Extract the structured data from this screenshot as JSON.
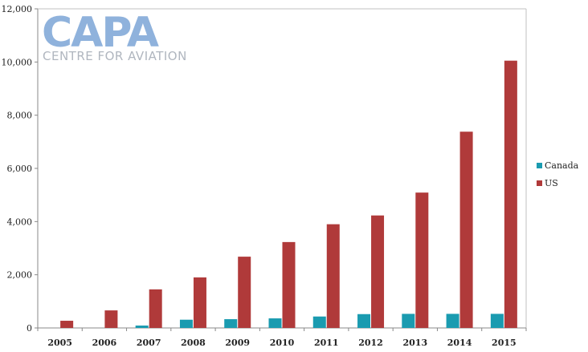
{
  "logo": {
    "main": "CAPA",
    "sub": "CENTRE FOR AVIATION"
  },
  "chart_data": {
    "type": "bar",
    "title": "",
    "xlabel": "",
    "ylabel": "",
    "categories": [
      "2005",
      "2006",
      "2007",
      "2008",
      "2009",
      "2010",
      "2011",
      "2012",
      "2013",
      "2014",
      "2015"
    ],
    "series": [
      {
        "name": "Canada",
        "color": "#1a9bb0",
        "values": [
          0,
          0,
          90,
          310,
          330,
          360,
          430,
          520,
          530,
          530,
          530
        ]
      },
      {
        "name": "US",
        "color": "#b03a3a",
        "values": [
          270,
          660,
          1450,
          1900,
          2680,
          3230,
          3900,
          4230,
          5090,
          7380,
          10050
        ]
      }
    ],
    "ylim": [
      0,
      12000
    ],
    "yticks": [
      0,
      2000,
      4000,
      6000,
      8000,
      10000,
      12000
    ],
    "ytick_labels": [
      "0",
      "2,000",
      "4,000",
      "6,000",
      "8,000",
      "10,000",
      "12,000"
    ],
    "grid": false,
    "legend_position": "right"
  }
}
